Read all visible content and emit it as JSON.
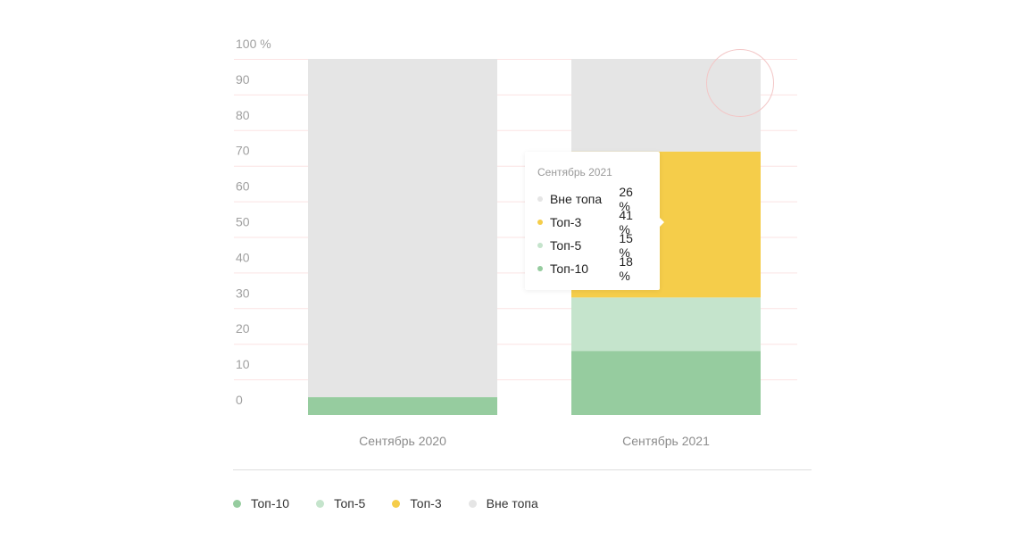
{
  "chart_data": {
    "type": "bar",
    "stacked": true,
    "categories": [
      "Сентябрь 2020",
      "Сентябрь 2021"
    ],
    "series": [
      {
        "name": "Топ-10",
        "values": [
          5,
          18
        ],
        "color": "#96cc9f"
      },
      {
        "name": "Топ-5",
        "values": [
          0,
          15
        ],
        "color": "#c5e4cc"
      },
      {
        "name": "Топ-3",
        "values": [
          0,
          41
        ],
        "color": "#f5cd4a"
      },
      {
        "name": "Вне топа",
        "values": [
          95,
          26
        ],
        "color": "#e5e5e5"
      }
    ],
    "yticks": [
      "0",
      "10",
      "20",
      "30",
      "40",
      "50",
      "60",
      "70",
      "80",
      "90",
      "100 %"
    ],
    "ylim": [
      0,
      100
    ],
    "grid": true,
    "grid_color": "#fbe3e3",
    "legend_position": "bottom-left"
  },
  "legend": [
    {
      "label": "Топ-10",
      "color": "#96cc9f"
    },
    {
      "label": "Топ-5",
      "color": "#c5e4cc"
    },
    {
      "label": "Топ-3",
      "color": "#f5cd4a"
    },
    {
      "label": "Вне топа",
      "color": "#e5e5e5"
    }
  ],
  "tooltip": {
    "title": "Сентябрь 2021",
    "rows": [
      {
        "label": "Вне топа",
        "value": "26 %",
        "color": "#e5e5e5"
      },
      {
        "label": "Топ-3",
        "value": "41 %",
        "color": "#f5cd4a"
      },
      {
        "label": "Топ-5",
        "value": "15 %",
        "color": "#c5e4cc"
      },
      {
        "label": "Топ-10",
        "value": "18 %",
        "color": "#96cc9f"
      }
    ]
  }
}
